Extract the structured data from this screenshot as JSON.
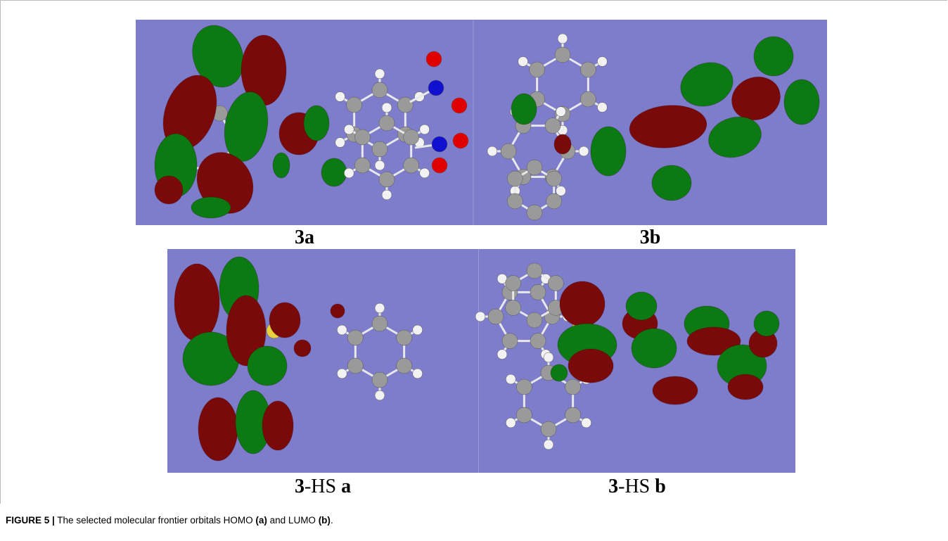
{
  "figure": {
    "panels": [
      {
        "label": [
          {
            "text": "3a",
            "bold": true
          }
        ]
      },
      {
        "label": [
          {
            "text": "3b",
            "bold": true
          }
        ]
      },
      {
        "label": [
          {
            "text": "3",
            "bold": true
          },
          {
            "text": "-HS ",
            "bold": false
          },
          {
            "text": "a",
            "bold": true
          }
        ]
      },
      {
        "label": [
          {
            "text": "3",
            "bold": true
          },
          {
            "text": "-HS ",
            "bold": false
          },
          {
            "text": "b",
            "bold": true
          }
        ]
      }
    ],
    "caption": [
      {
        "text": "FIGURE 5 |",
        "bold": true
      },
      {
        "text": " The selected molecular frontier orbitals HOMO ",
        "bold": false
      },
      {
        "text": "(a)",
        "bold": true
      },
      {
        "text": " and LUMO ",
        "bold": false
      },
      {
        "text": "(b)",
        "bold": true
      },
      {
        "text": ".",
        "bold": false
      }
    ]
  }
}
